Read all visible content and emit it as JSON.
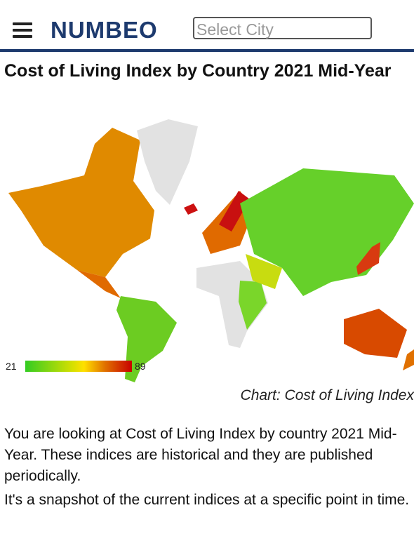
{
  "header": {
    "logo": "NUMBEO",
    "search_placeholder": "Select City"
  },
  "title": "Cost of Living Index by Country 2021 Mid-Year",
  "legend": {
    "min": 21,
    "max": 89
  },
  "caption": "Chart: Cost of Living Index",
  "paragraphs": [
    "You are looking at Cost of Living Index by country 2021 Mid-Year. These indices are historical and they are published periodically.",
    "It's a snapshot of the current indices at a specific point in time."
  ]
}
